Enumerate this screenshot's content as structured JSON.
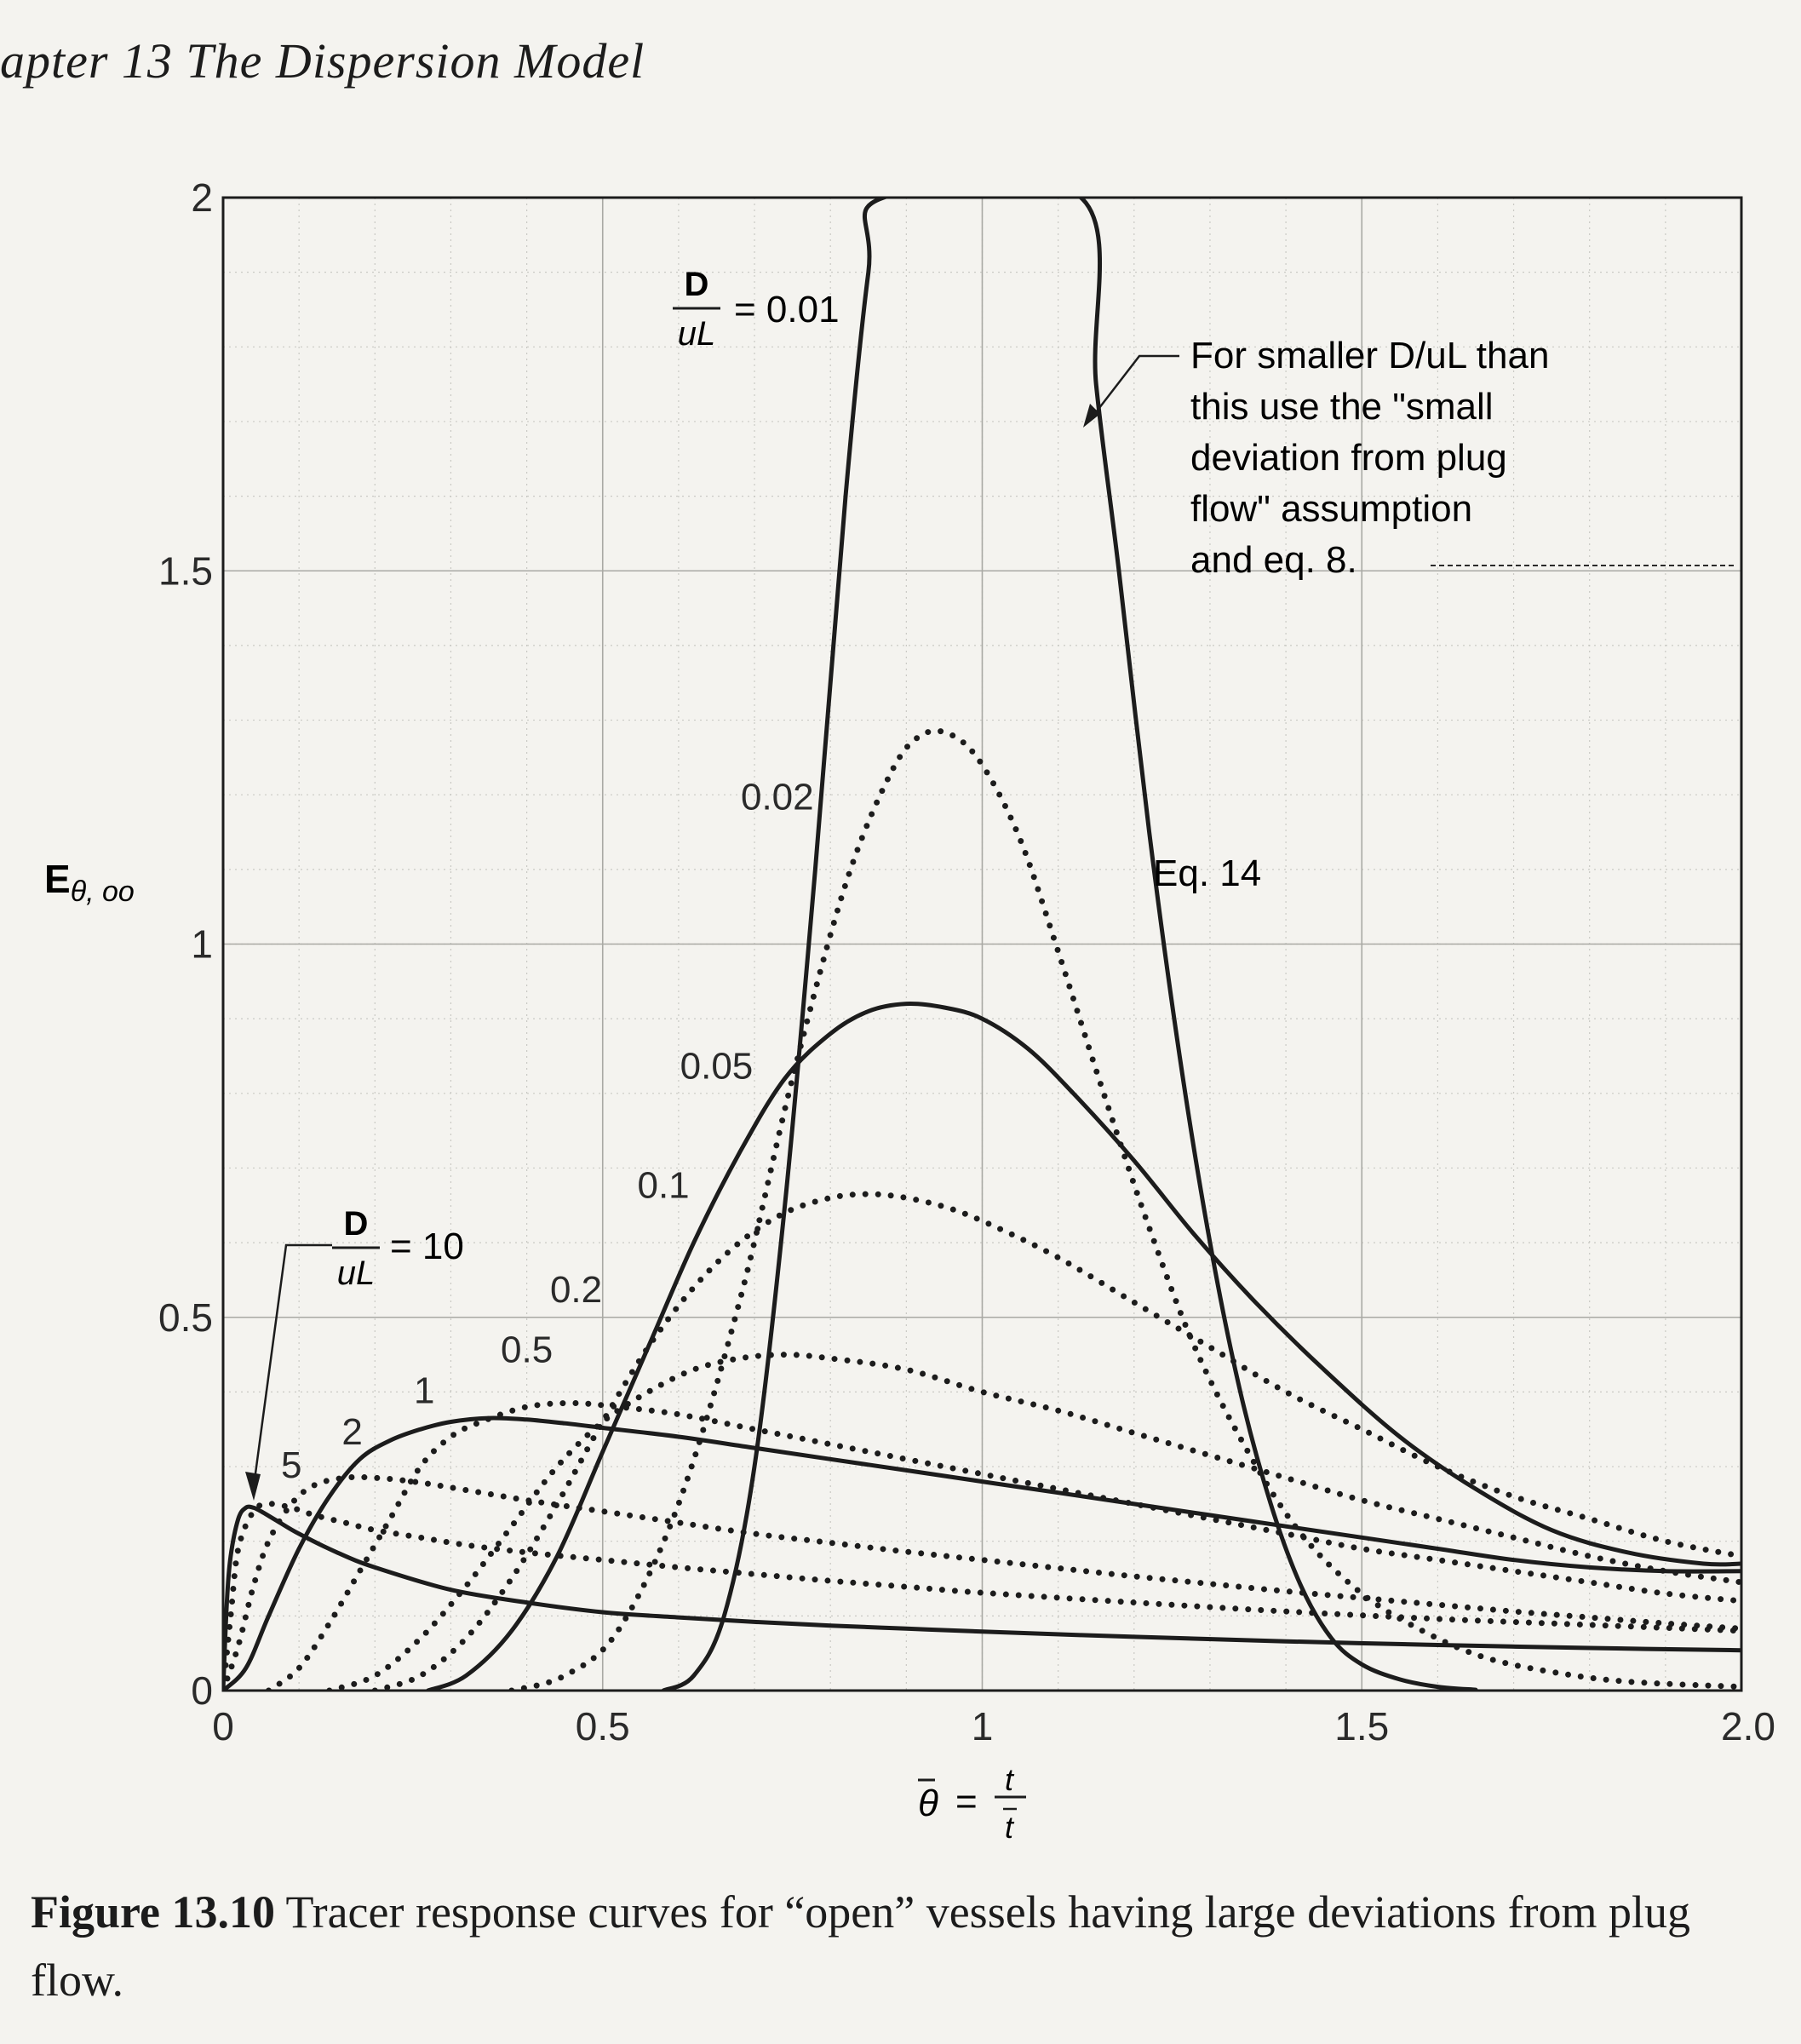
{
  "page": {
    "header": "apter 13 The Dispersion Model",
    "caption_label": "Figure 13.10",
    "caption_text": "Tracer response curves for “open” vessels having large deviations from plug flow."
  },
  "chart_data": {
    "type": "line",
    "title": "",
    "ylabel": {
      "main": "E",
      "sub": "θ, oo"
    },
    "xlabel": {
      "lhs": "θ",
      "num": "t",
      "den": "t"
    },
    "xlim": [
      0,
      2.0
    ],
    "ylim": [
      0,
      2
    ],
    "x_ticks": [
      {
        "value": 0,
        "label": "0"
      },
      {
        "value": 0.5,
        "label": "0.5"
      },
      {
        "value": 1,
        "label": "1"
      },
      {
        "value": 1.5,
        "label": "1.5"
      },
      {
        "value": 2.0,
        "label": "2.0"
      }
    ],
    "y_ticks": [
      {
        "value": 0,
        "label": "0"
      },
      {
        "value": 0.5,
        "label": "0.5"
      },
      {
        "value": 1,
        "label": "1"
      },
      {
        "value": 1.5,
        "label": "1.5"
      },
      {
        "value": 2,
        "label": "2"
      }
    ],
    "grid": "major and minor",
    "series": [
      {
        "name": "D/uL = 0.01",
        "style": "solid",
        "x": [
          0.58,
          0.62,
          0.66,
          0.7,
          0.74,
          0.78,
          0.82,
          0.85,
          0.87,
          1.13,
          1.15,
          1.18,
          1.22,
          1.26,
          1.3,
          1.34,
          1.38,
          1.42,
          1.46,
          1.5,
          1.55,
          1.6,
          1.65
        ],
        "y": [
          0,
          0.02,
          0.1,
          0.3,
          0.65,
          1.1,
          1.6,
          1.9,
          2.0,
          2.0,
          1.75,
          1.5,
          1.15,
          0.85,
          0.6,
          0.4,
          0.25,
          0.14,
          0.07,
          0.035,
          0.015,
          0.005,
          0.001
        ]
      },
      {
        "name": "0.02",
        "style": "dotted",
        "x": [
          0.38,
          0.45,
          0.52,
          0.6,
          0.68,
          0.75,
          0.82,
          0.88,
          0.92,
          0.96,
          1.0,
          1.05,
          1.1,
          1.16,
          1.22,
          1.28,
          1.35,
          1.42,
          1.5,
          1.58,
          1.66,
          1.75,
          1.85,
          2.0
        ],
        "y": [
          0,
          0.02,
          0.08,
          0.25,
          0.52,
          0.82,
          1.08,
          1.23,
          1.28,
          1.28,
          1.24,
          1.14,
          0.99,
          0.8,
          0.62,
          0.46,
          0.32,
          0.21,
          0.13,
          0.08,
          0.045,
          0.025,
          0.012,
          0.005
        ]
      },
      {
        "name": "0.05",
        "style": "solid",
        "x": [
          0.27,
          0.32,
          0.38,
          0.44,
          0.5,
          0.56,
          0.62,
          0.68,
          0.74,
          0.8,
          0.85,
          0.9,
          0.95,
          1.0,
          1.06,
          1.12,
          1.2,
          1.28,
          1.36,
          1.45,
          1.55,
          1.65,
          1.75,
          1.85,
          1.95,
          2.0
        ],
        "y": [
          0,
          0.02,
          0.08,
          0.18,
          0.32,
          0.46,
          0.6,
          0.72,
          0.82,
          0.88,
          0.91,
          0.92,
          0.915,
          0.9,
          0.86,
          0.8,
          0.71,
          0.61,
          0.52,
          0.43,
          0.34,
          0.27,
          0.215,
          0.185,
          0.17,
          0.17
        ]
      },
      {
        "name": "0.1",
        "style": "dotted",
        "x": [
          0.2,
          0.26,
          0.32,
          0.38,
          0.44,
          0.5,
          0.56,
          0.62,
          0.68,
          0.74,
          0.8,
          0.85,
          0.9,
          0.96,
          1.02,
          1.1,
          1.2,
          1.3,
          1.4,
          1.5,
          1.6,
          1.7,
          1.8,
          1.9,
          2.0
        ],
        "y": [
          0,
          0.02,
          0.07,
          0.15,
          0.25,
          0.36,
          0.46,
          0.54,
          0.6,
          0.64,
          0.66,
          0.665,
          0.66,
          0.645,
          0.62,
          0.58,
          0.52,
          0.46,
          0.4,
          0.35,
          0.3,
          0.26,
          0.23,
          0.2,
          0.18
        ]
      },
      {
        "name": "0.2",
        "style": "dotted",
        "x": [
          0.14,
          0.2,
          0.26,
          0.32,
          0.38,
          0.44,
          0.5,
          0.56,
          0.62,
          0.68,
          0.74,
          0.8,
          0.9,
          1.0,
          1.1,
          1.2,
          1.3,
          1.4,
          1.5,
          1.6,
          1.7,
          1.8,
          1.9,
          2.0
        ],
        "y": [
          0,
          0.02,
          0.07,
          0.14,
          0.22,
          0.3,
          0.36,
          0.4,
          0.43,
          0.445,
          0.45,
          0.445,
          0.43,
          0.4,
          0.375,
          0.345,
          0.315,
          0.285,
          0.255,
          0.23,
          0.205,
          0.18,
          0.16,
          0.145
        ]
      },
      {
        "name": "0.5",
        "style": "dotted",
        "x": [
          0.06,
          0.1,
          0.14,
          0.18,
          0.22,
          0.26,
          0.3,
          0.34,
          0.4,
          0.46,
          0.52,
          0.6,
          0.7,
          0.8,
          0.9,
          1.0,
          1.1,
          1.2,
          1.3,
          1.4,
          1.5,
          1.6,
          1.7,
          1.8,
          1.9,
          2.0
        ],
        "y": [
          0,
          0.03,
          0.09,
          0.16,
          0.23,
          0.3,
          0.34,
          0.36,
          0.38,
          0.385,
          0.38,
          0.37,
          0.35,
          0.33,
          0.31,
          0.29,
          0.27,
          0.25,
          0.23,
          0.21,
          0.19,
          0.175,
          0.16,
          0.145,
          0.13,
          0.12
        ]
      },
      {
        "name": "1",
        "style": "solid",
        "x": [
          0,
          0.03,
          0.06,
          0.1,
          0.14,
          0.18,
          0.22,
          0.26,
          0.3,
          0.35,
          0.4,
          0.45,
          0.5,
          0.6,
          0.7,
          0.8,
          0.9,
          1.0,
          1.1,
          1.2,
          1.3,
          1.4,
          1.5,
          1.6,
          1.7,
          1.8,
          1.9,
          2.0
        ],
        "y": [
          0,
          0.03,
          0.1,
          0.19,
          0.26,
          0.31,
          0.335,
          0.35,
          0.36,
          0.365,
          0.363,
          0.358,
          0.352,
          0.34,
          0.325,
          0.31,
          0.295,
          0.28,
          0.265,
          0.25,
          0.235,
          0.22,
          0.205,
          0.19,
          0.175,
          0.165,
          0.16,
          0.16
        ]
      },
      {
        "name": "2",
        "style": "dotted",
        "x": [
          0,
          0.02,
          0.04,
          0.06,
          0.09,
          0.12,
          0.16,
          0.2,
          0.25,
          0.3,
          0.4,
          0.5,
          0.6,
          0.7,
          0.8,
          0.9,
          1.0,
          1.1,
          1.2,
          1.3,
          1.4,
          1.5,
          1.6,
          1.7,
          1.8,
          1.9,
          2.0
        ],
        "y": [
          0,
          0.06,
          0.14,
          0.2,
          0.25,
          0.275,
          0.285,
          0.285,
          0.28,
          0.272,
          0.255,
          0.24,
          0.225,
          0.21,
          0.198,
          0.186,
          0.175,
          0.164,
          0.153,
          0.143,
          0.133,
          0.124,
          0.115,
          0.106,
          0.098,
          0.09,
          0.083
        ]
      },
      {
        "name": "5",
        "style": "dotted",
        "x": [
          0,
          0.01,
          0.02,
          0.04,
          0.06,
          0.09,
          0.12,
          0.16,
          0.2,
          0.26,
          0.32,
          0.4,
          0.5,
          0.6,
          0.7,
          0.8,
          0.9,
          1.0,
          1.2,
          1.4,
          1.6,
          1.8,
          2.0
        ],
        "y": [
          0,
          0.1,
          0.19,
          0.24,
          0.25,
          0.245,
          0.235,
          0.225,
          0.215,
          0.205,
          0.195,
          0.185,
          0.175,
          0.165,
          0.156,
          0.147,
          0.139,
          0.131,
          0.118,
          0.106,
          0.096,
          0.088,
          0.08
        ]
      },
      {
        "name": "D/uL = 10",
        "style": "solid",
        "x": [
          0,
          0.005,
          0.01,
          0.02,
          0.03,
          0.04,
          0.05,
          0.07,
          0.1,
          0.15,
          0.2,
          0.3,
          0.4,
          0.5,
          0.6,
          0.7,
          0.8,
          0.9,
          1.0,
          1.2,
          1.4,
          1.6,
          1.8,
          2.0
        ],
        "y": [
          0,
          0.12,
          0.18,
          0.23,
          0.245,
          0.245,
          0.24,
          0.228,
          0.21,
          0.185,
          0.165,
          0.135,
          0.118,
          0.105,
          0.098,
          0.092,
          0.087,
          0.083,
          0.079,
          0.072,
          0.066,
          0.061,
          0.057,
          0.054
        ]
      }
    ],
    "series_labels": [
      {
        "text": "0.02",
        "x": 0.73,
        "y": 1.18
      },
      {
        "text": "0.05",
        "x": 0.65,
        "y": 0.82
      },
      {
        "text": "0.1",
        "x": 0.58,
        "y": 0.66
      },
      {
        "text": "0.2",
        "x": 0.465,
        "y": 0.52
      },
      {
        "text": "0.5",
        "x": 0.4,
        "y": 0.44
      },
      {
        "text": "1",
        "x": 0.265,
        "y": 0.385
      },
      {
        "text": "2",
        "x": 0.17,
        "y": 0.33
      },
      {
        "text": "5",
        "x": 0.09,
        "y": 0.285
      }
    ],
    "annotations": {
      "d001": {
        "frac_num": "D",
        "frac_den": "uL",
        "rhs": "= 0.01"
      },
      "d10": {
        "frac_num": "D",
        "frac_den": "uL",
        "rhs": "= 10"
      },
      "note_lines": [
        "For smaller D/uL than",
        "this use the \"small",
        "deviation from plug",
        "flow\" assumption",
        "and eq. 8."
      ],
      "eq14": "Eq. 14"
    }
  }
}
